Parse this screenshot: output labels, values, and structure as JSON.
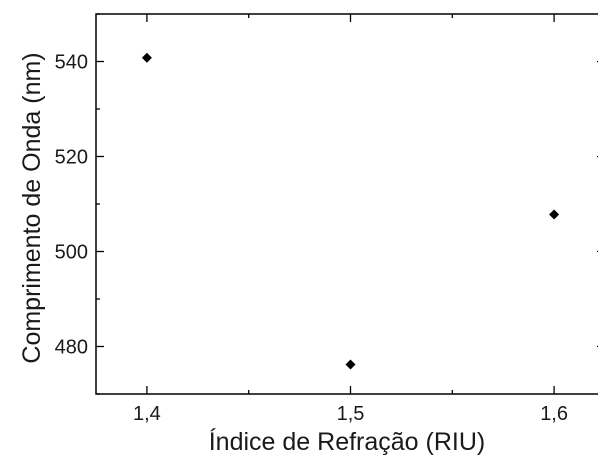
{
  "chart_data": {
    "type": "scatter",
    "title": "",
    "xlabel": "Índice de Refração (RIU)",
    "ylabel": "Comprimento de Onda (nm)",
    "x": [
      1.4,
      1.5,
      1.6
    ],
    "y": [
      540.8,
      476.2,
      507.8
    ],
    "xlim": [
      1.375,
      1.625
    ],
    "ylim": [
      470,
      550
    ],
    "x_major_ticks": [
      1.4,
      1.5,
      1.6
    ],
    "x_tick_labels": [
      "1,4",
      "1,5",
      "1,6"
    ],
    "x_minor_ticks": [
      1.45,
      1.55
    ],
    "y_major_ticks": [
      480,
      500,
      520,
      540
    ],
    "y_tick_labels": [
      "480",
      "500",
      "520",
      "540"
    ],
    "y_minor_ticks": [
      470,
      490,
      510,
      530,
      550
    ],
    "grid": false,
    "legend": "none",
    "marker": "diamond",
    "marker_color": "#000000"
  }
}
